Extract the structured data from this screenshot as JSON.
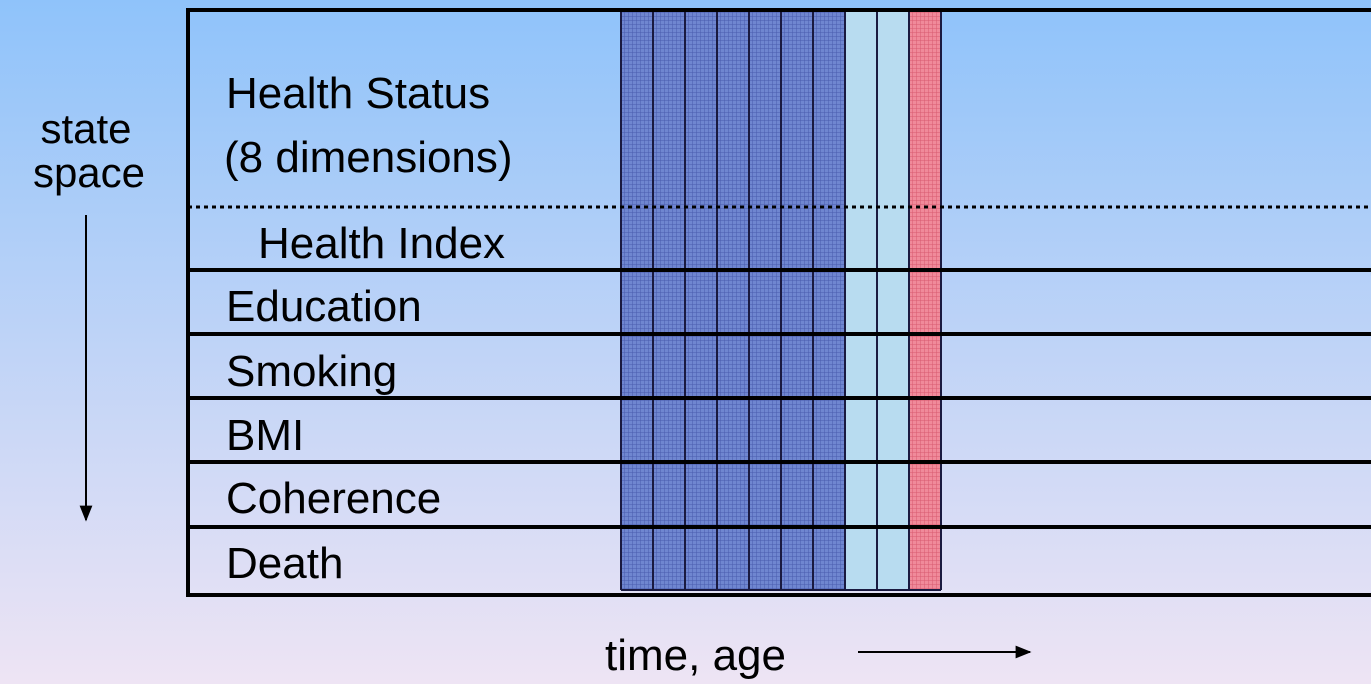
{
  "axis_labels": {
    "state_space": [
      "state",
      "space"
    ],
    "time": "time, age"
  },
  "rows": {
    "health_status": [
      "Health Status",
      "(8 dimensions)"
    ],
    "health_index": "Health Index",
    "others": [
      "Education",
      "Smoking",
      "BMI",
      "Coherence",
      "Death"
    ]
  }
}
